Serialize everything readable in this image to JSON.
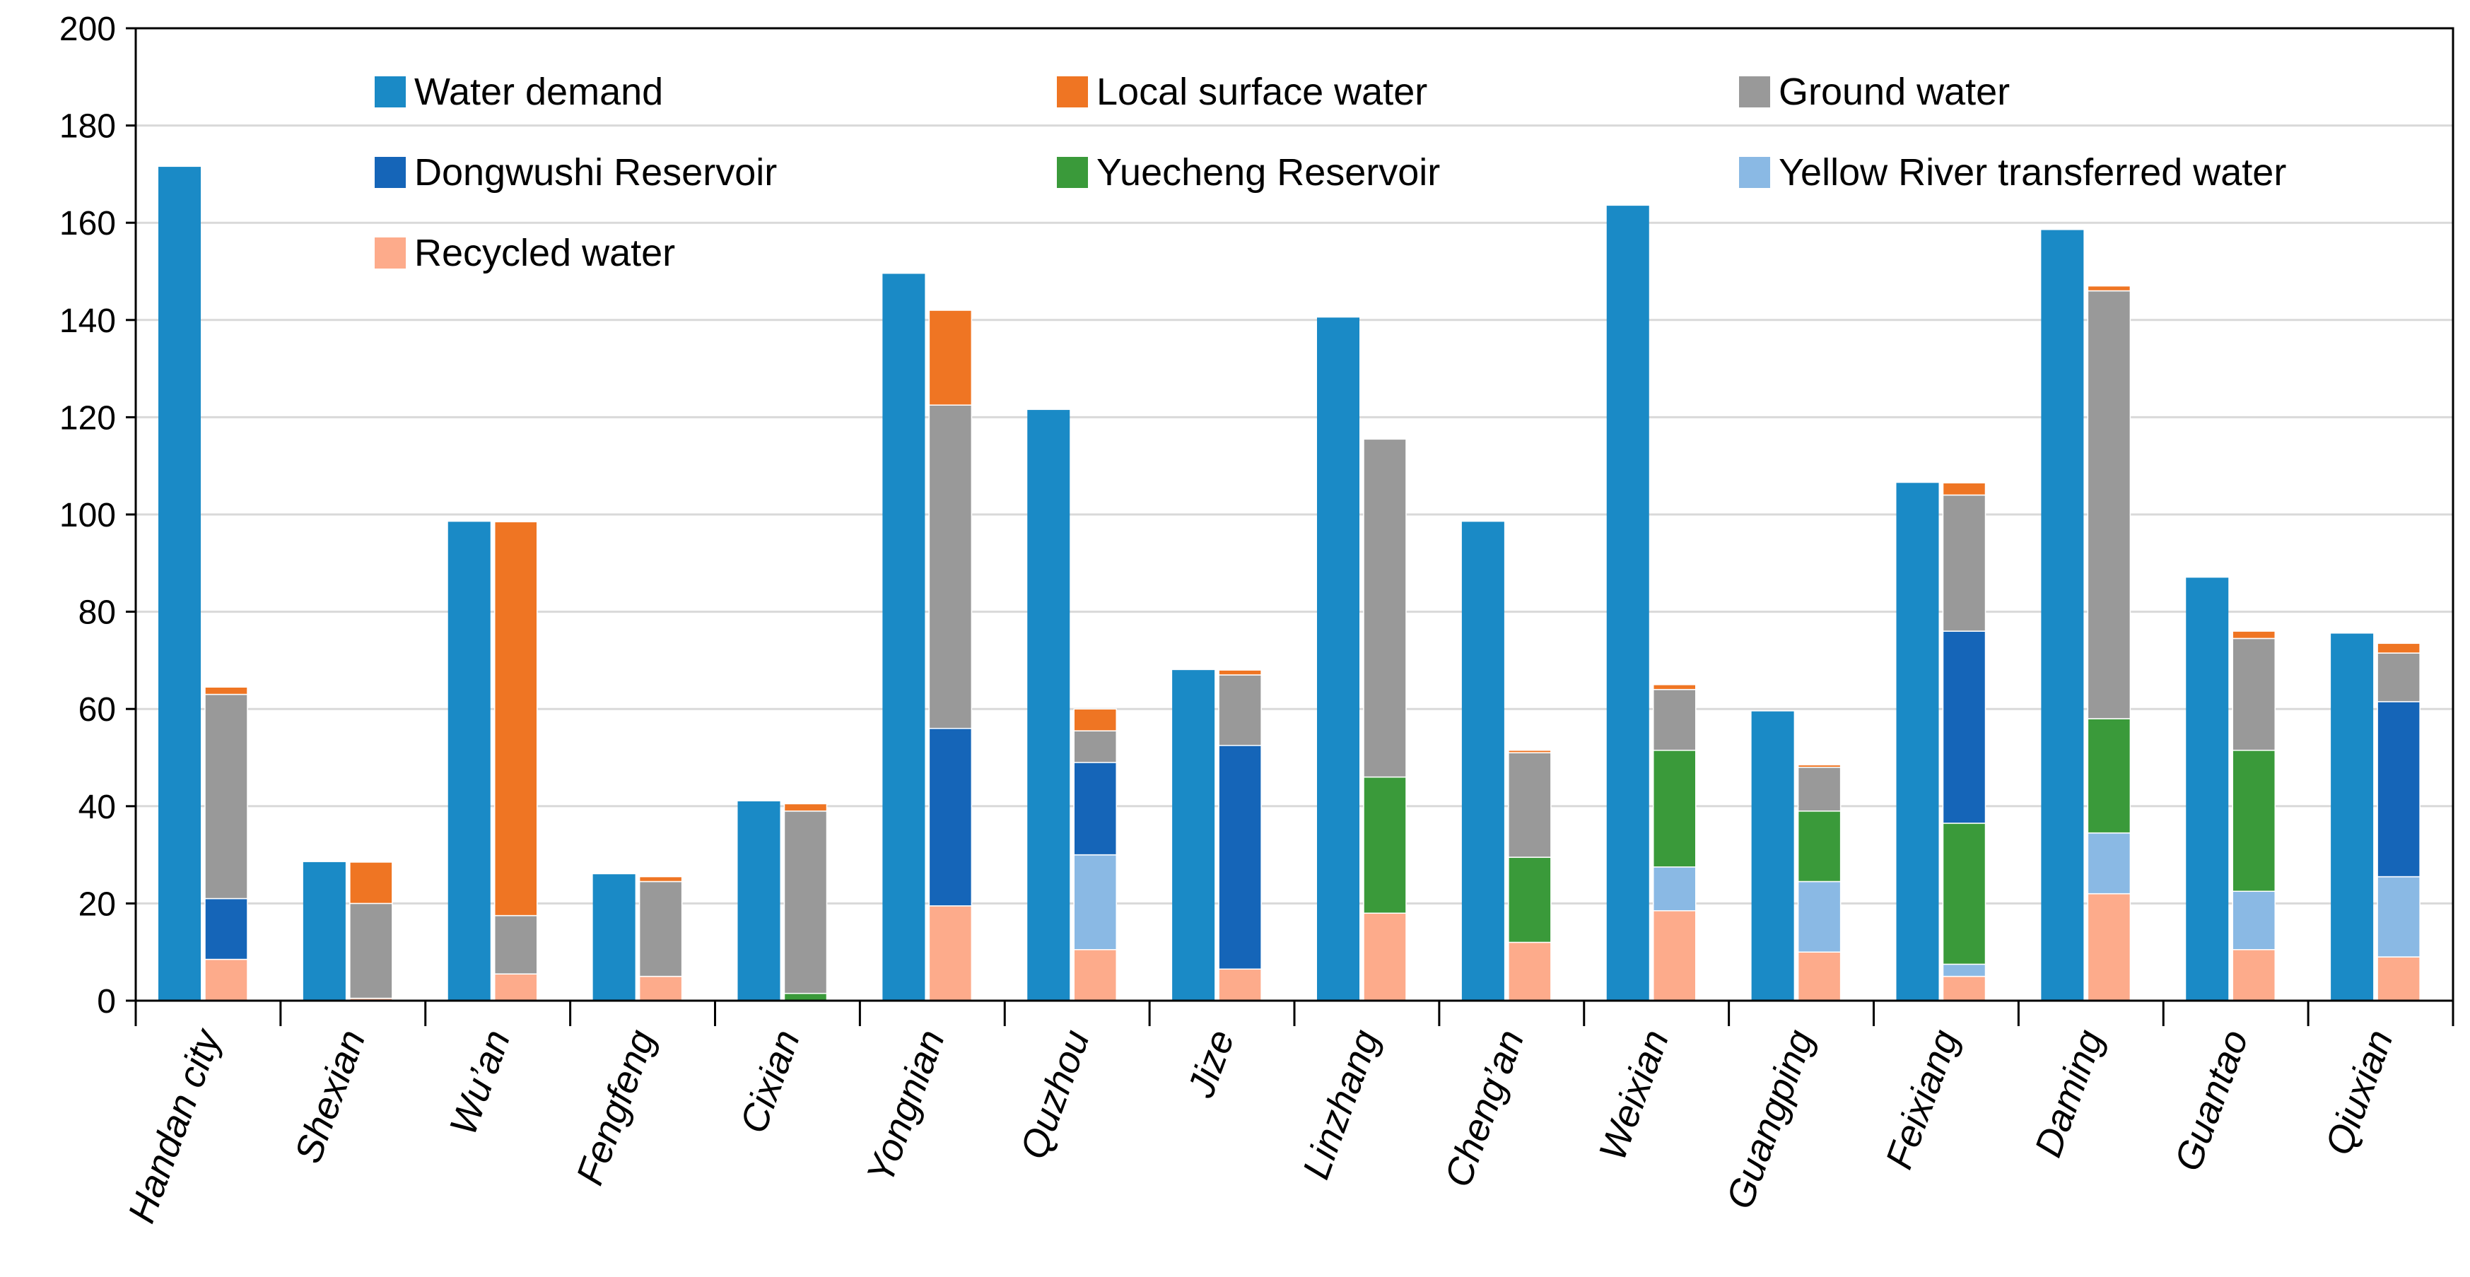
{
  "chart_data": {
    "type": "bar",
    "title": "",
    "xlabel": "",
    "ylabel": "",
    "ylim": [
      0,
      200
    ],
    "yticks": [
      0,
      20,
      40,
      60,
      80,
      100,
      120,
      140,
      160,
      180,
      200
    ],
    "ytick_labels": [
      "0",
      "20",
      "40",
      "60",
      "80",
      "100",
      "120",
      "140",
      "160",
      "180",
      "200"
    ],
    "grid": true,
    "legend_position": "top-inside",
    "categories": [
      "Handan city",
      "Shexian",
      "Wu’an",
      "Fengfeng",
      "Cixian",
      "Yongnian",
      "Quzhou",
      "Jize",
      "Linzhang",
      "Cheng’an",
      "Weixian",
      "Guangping",
      "Feixiang",
      "Daming",
      "Guantao",
      "Qiuxian"
    ],
    "demand_series": {
      "name": "Water demand",
      "color": "#1a8ac6",
      "values": [
        171.5,
        28.5,
        98.5,
        26,
        41,
        149.5,
        121.5,
        68,
        140.5,
        98.5,
        163.5,
        59.5,
        106.5,
        158.5,
        87,
        75.5
      ]
    },
    "supply_series": [
      {
        "name": "Recycled water",
        "color": "#fdab8b",
        "values": [
          8.5,
          0.5,
          5.5,
          5,
          0,
          19.5,
          10.5,
          6.5,
          18,
          12,
          18.5,
          10,
          5,
          22,
          10.5,
          9
        ]
      },
      {
        "name": "Yellow River  transferred water",
        "color": "#8ab9e4",
        "values": [
          0,
          0,
          0,
          0,
          0,
          0,
          19.5,
          0,
          0,
          0,
          9,
          14.5,
          2.5,
          12.5,
          12,
          16.5
        ]
      },
      {
        "name": "Yuecheng Reservoir",
        "color": "#3a9a3a",
        "values": [
          0,
          0,
          0,
          0,
          1.5,
          0,
          0,
          0,
          28,
          17.5,
          24,
          14.5,
          29,
          23.5,
          29,
          0
        ]
      },
      {
        "name": "Dongwushi Reservoir",
        "color": "#1565b8",
        "values": [
          12.5,
          0,
          0,
          0,
          0,
          36.5,
          19,
          46,
          0,
          0,
          0,
          0,
          39.5,
          0,
          0,
          36
        ]
      },
      {
        "name": "Ground water",
        "color": "#999999",
        "values": [
          42,
          19.5,
          12,
          19.5,
          37.5,
          66.5,
          6.5,
          14.5,
          69.5,
          21.5,
          12.5,
          9,
          28,
          88,
          23,
          10
        ]
      },
      {
        "name": "Local surface water",
        "color": "#ef7523",
        "values": [
          1.5,
          8.5,
          81,
          1,
          1.5,
          19.5,
          4.5,
          1,
          0,
          0.5,
          1,
          0.5,
          2.5,
          1,
          1.5,
          2
        ]
      }
    ],
    "legend": [
      {
        "name": "Water demand",
        "color": "#1a8ac6"
      },
      {
        "name": "Local surface water",
        "color": "#ef7523"
      },
      {
        "name": "Ground water",
        "color": "#999999"
      },
      {
        "name": "Dongwushi Reservoir",
        "color": "#1565b8"
      },
      {
        "name": "Yuecheng Reservoir",
        "color": "#3a9a3a"
      },
      {
        "name": "Yellow River  transferred water",
        "color": "#8ab9e4"
      },
      {
        "name": "Recycled water",
        "color": "#fdab8b"
      }
    ]
  }
}
